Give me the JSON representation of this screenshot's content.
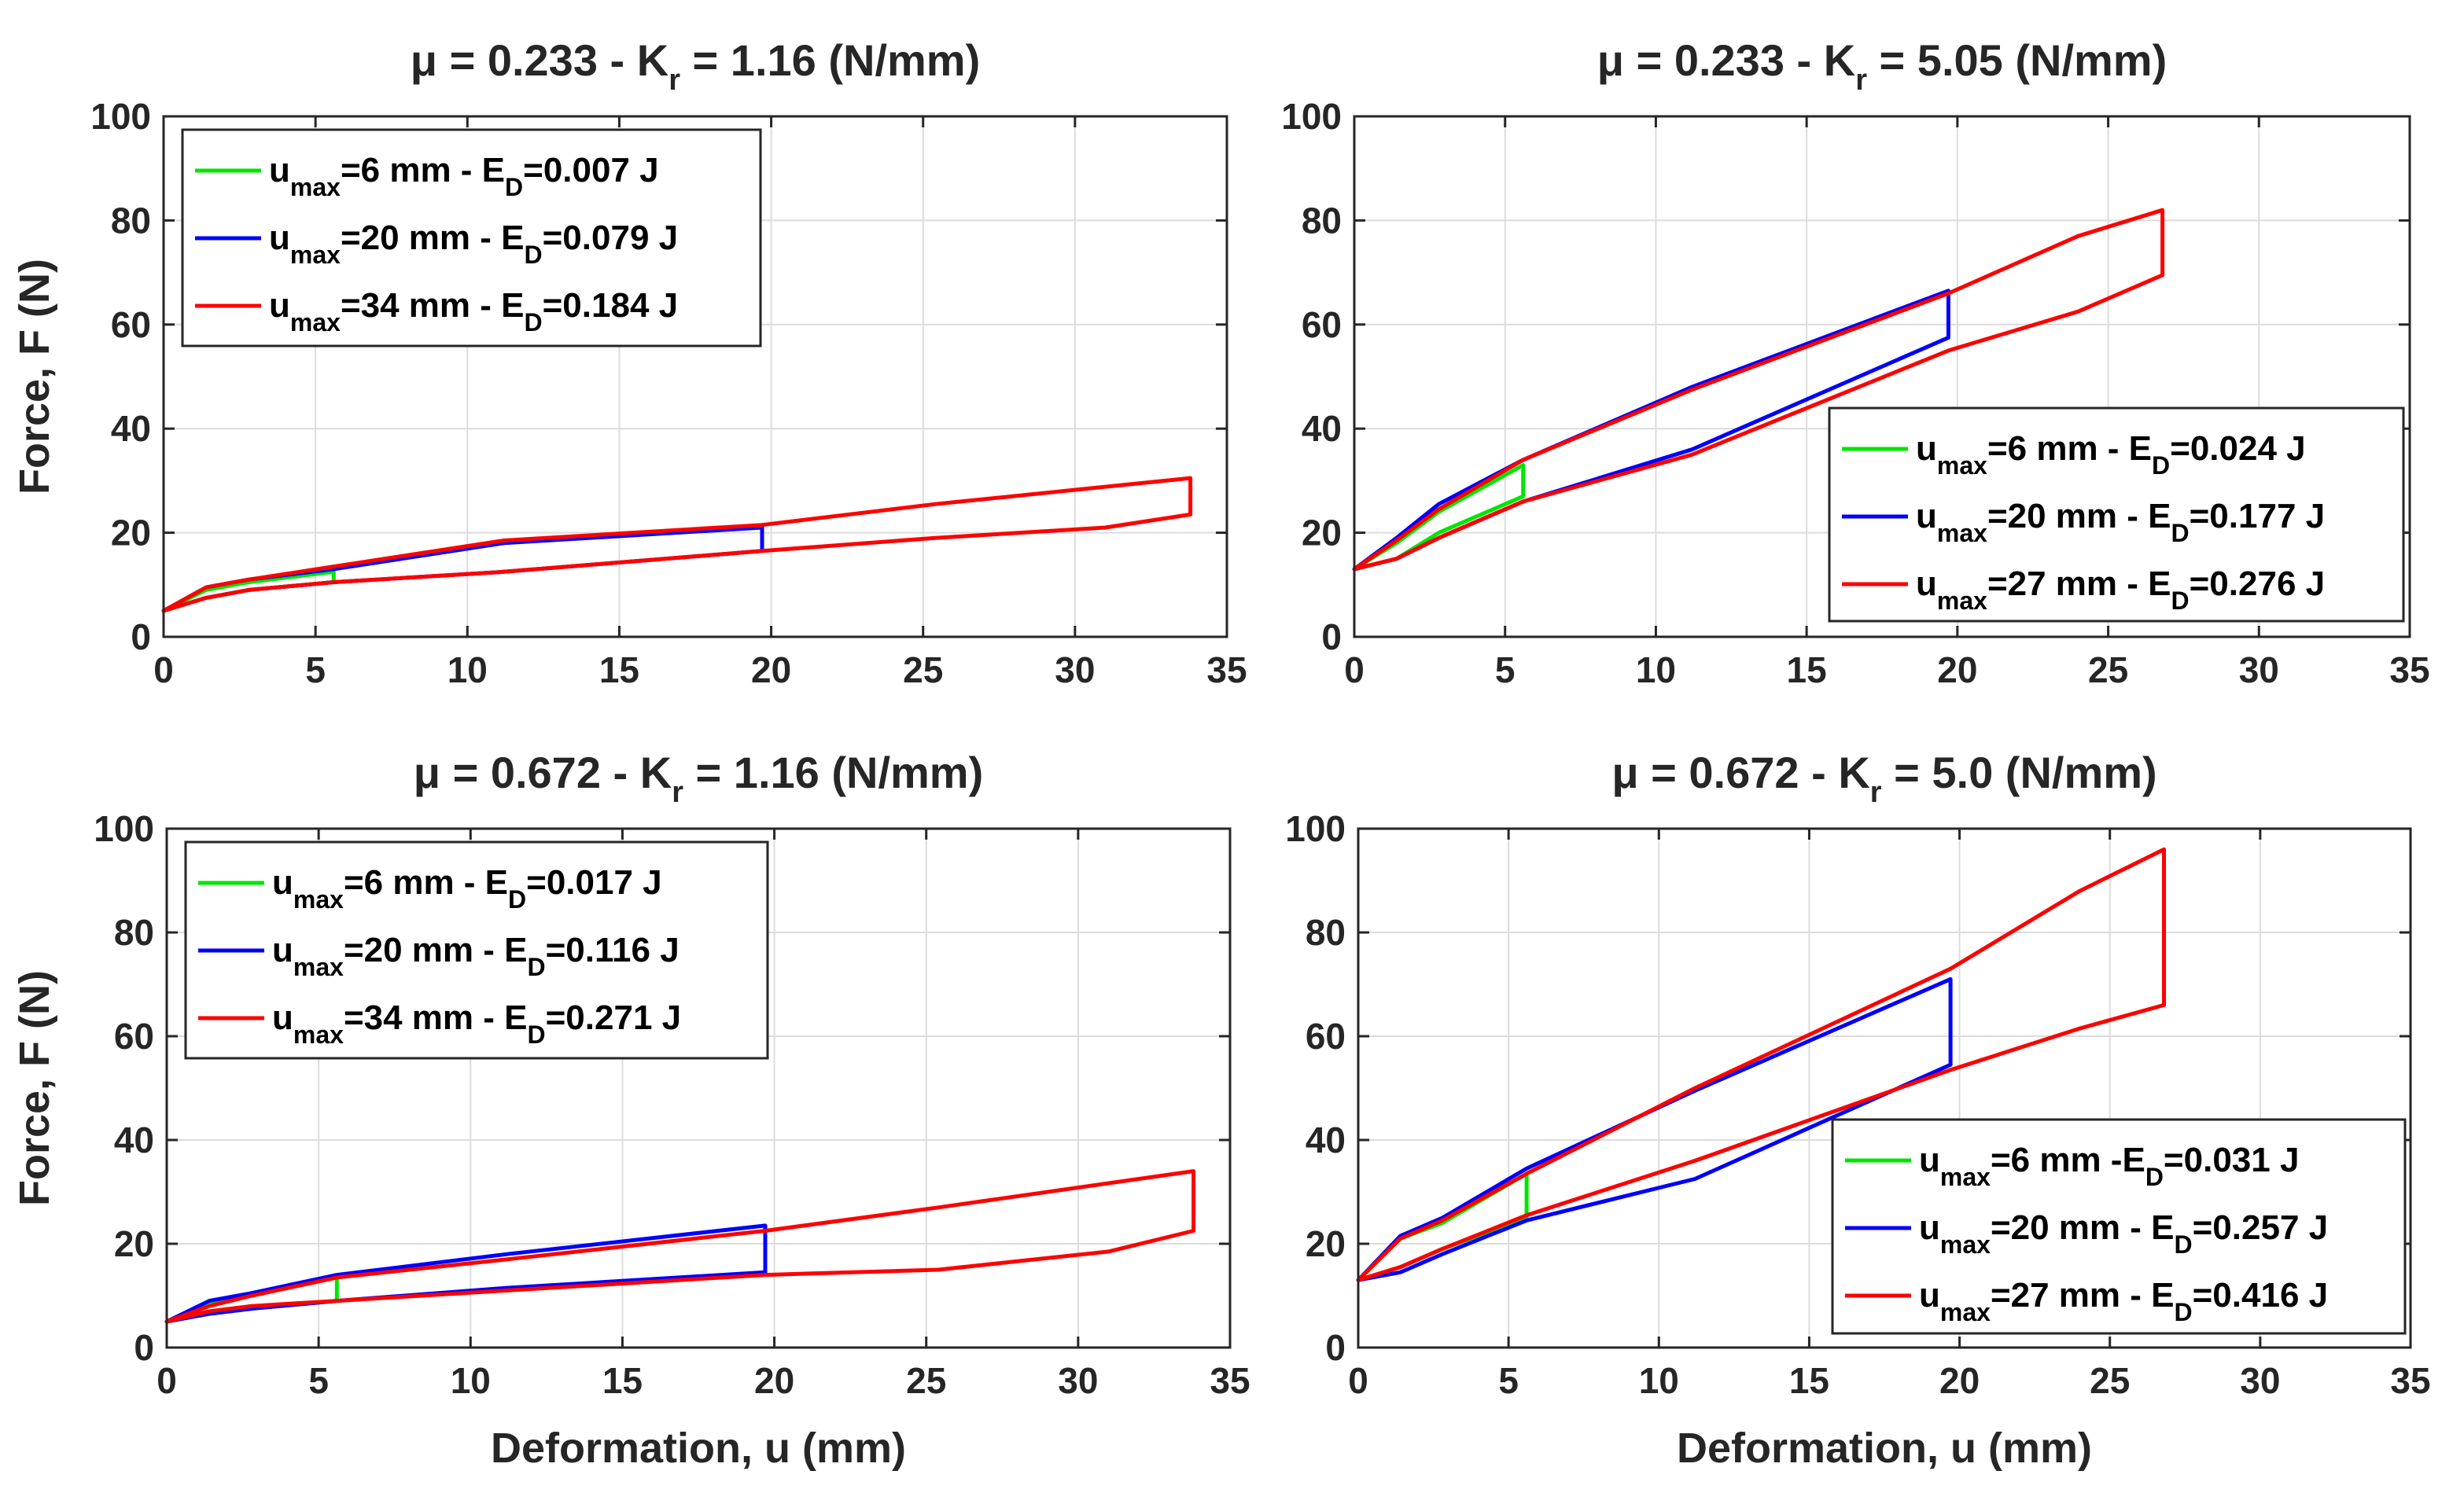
{
  "figure": {
    "xlabel": "Deformation, u (mm)",
    "ylabel": "Force, F (N)"
  },
  "chart_data": [
    {
      "type": "line",
      "title": {
        "prefix": "μ = 0.233 - K",
        "sub": "r",
        "suffix": " = 1.16 (N/mm)"
      },
      "xlabel": "",
      "ylabel": "Force, F (N)",
      "xlim": [
        0,
        35
      ],
      "ylim": [
        0,
        100
      ],
      "xticks": [
        0,
        5,
        10,
        15,
        20,
        25,
        30,
        35
      ],
      "yticks": [
        0,
        20,
        40,
        60,
        80,
        100
      ],
      "grid": true,
      "legend_position": "top-left",
      "series": [
        {
          "name": "u_max=6 mm - E_D=0.007 J",
          "color": "#00e600",
          "legend": {
            "a": "u",
            "a_sub": "max",
            "b": "=6 mm - E",
            "b_sub": "D",
            "c": "=0.007 J"
          },
          "x": [
            0,
            1.4,
            2.8,
            5.6,
            5.6,
            2.8,
            1.4,
            0
          ],
          "y": [
            5,
            9,
            10.5,
            12.5,
            10.5,
            9,
            7.5,
            5
          ]
        },
        {
          "name": "u_max=20 mm - E_D=0.079 J",
          "color": "#0000ff",
          "legend": {
            "a": "u",
            "a_sub": "max",
            "b": "=20 mm - E",
            "b_sub": "D",
            "c": "=0.079 J"
          },
          "x": [
            0,
            1.4,
            2.8,
            5.6,
            11.2,
            19.7,
            19.7,
            11.2,
            5.6,
            2.8,
            1.4,
            0
          ],
          "y": [
            5,
            9.5,
            11,
            13,
            18,
            21,
            16.5,
            12.5,
            10.5,
            9,
            7.5,
            5
          ]
        },
        {
          "name": "u_max=34 mm - E_D=0.184 J",
          "color": "#ff0000",
          "legend": {
            "a": "u",
            "a_sub": "max",
            "b": "=34 mm - E",
            "b_sub": "D",
            "c": "=0.184 J"
          },
          "x": [
            0,
            1.4,
            2.8,
            5.6,
            11.2,
            19.7,
            25.4,
            33.8,
            33.8,
            31,
            25.4,
            19.7,
            11.2,
            5.6,
            2.8,
            1.4,
            0
          ],
          "y": [
            5,
            9.5,
            11,
            13.5,
            18.5,
            21.5,
            25.5,
            30.5,
            23.5,
            21,
            19,
            16.5,
            12.5,
            10.5,
            9,
            7.5,
            5
          ]
        }
      ]
    },
    {
      "type": "line",
      "title": {
        "prefix": "μ = 0.233 - K",
        "sub": "r",
        "suffix": " = 5.05 (N/mm)"
      },
      "xlabel": "",
      "ylabel": "",
      "xlim": [
        0,
        35
      ],
      "ylim": [
        0,
        100
      ],
      "xticks": [
        0,
        5,
        10,
        15,
        20,
        25,
        30,
        35
      ],
      "yticks": [
        0,
        20,
        40,
        60,
        80,
        100
      ],
      "grid": true,
      "legend_position": "bottom-right",
      "series": [
        {
          "name": "u_max=6 mm - E_D=0.024 J",
          "color": "#00e600",
          "legend": {
            "a": "u",
            "a_sub": "max",
            "b": "=6 mm - E",
            "b_sub": "D",
            "c": "=0.024 J"
          },
          "x": [
            0,
            1.4,
            2.8,
            5.6,
            5.6,
            2.8,
            1.4,
            0
          ],
          "y": [
            13,
            18,
            24,
            33,
            27,
            20,
            15,
            13
          ]
        },
        {
          "name": "u_max=20 mm - E_D=0.177 J",
          "color": "#0000ff",
          "legend": {
            "a": "u",
            "a_sub": "max",
            "b": "=20 mm - E",
            "b_sub": "D",
            "c": "=0.177 J"
          },
          "x": [
            0,
            1.4,
            2.8,
            5.6,
            11.2,
            19.7,
            19.7,
            11.2,
            5.6,
            2.8,
            1.4,
            0
          ],
          "y": [
            13,
            19,
            25.5,
            34,
            48,
            66.5,
            57.5,
            36,
            26,
            19,
            15,
            13
          ]
        },
        {
          "name": "u_max=27 mm - E_D=0.276 J",
          "color": "#ff0000",
          "legend": {
            "a": "u",
            "a_sub": "max",
            "b": "=27 mm - E",
            "b_sub": "D",
            "c": "=0.276 J"
          },
          "x": [
            0,
            1.4,
            2.8,
            5.6,
            11.2,
            19.7,
            24,
            26.8,
            26.8,
            24,
            19.7,
            11.2,
            5.6,
            2.8,
            1.4,
            0
          ],
          "y": [
            13,
            18.5,
            24.5,
            34,
            47.5,
            66,
            77,
            82,
            69.5,
            62.5,
            55,
            35,
            26,
            19,
            15,
            13
          ]
        }
      ]
    },
    {
      "type": "line",
      "title": {
        "prefix": "μ = 0.672 - K",
        "sub": "r",
        "suffix": " = 1.16 (N/mm)"
      },
      "xlabel": "Deformation, u (mm)",
      "ylabel": "Force, F (N)",
      "xlim": [
        0,
        35
      ],
      "ylim": [
        0,
        100
      ],
      "xticks": [
        0,
        5,
        10,
        15,
        20,
        25,
        30,
        35
      ],
      "yticks": [
        0,
        20,
        40,
        60,
        80,
        100
      ],
      "grid": true,
      "legend_position": "top-left",
      "series": [
        {
          "name": "u_max=6 mm - E_D=0.017 J",
          "color": "#00e600",
          "legend": {
            "a": "u",
            "a_sub": "max",
            "b": "=6 mm - E",
            "b_sub": "D",
            "c": "=0.017 J"
          },
          "x": [
            0,
            1.4,
            2.8,
            5.6,
            5.6,
            2.8,
            1.4,
            0
          ],
          "y": [
            5,
            8.5,
            10.5,
            13.5,
            9,
            7.5,
            6.5,
            5
          ]
        },
        {
          "name": "u_max=20 mm - E_D=0.116 J",
          "color": "#0000ff",
          "legend": {
            "a": "u",
            "a_sub": "max",
            "b": "=20 mm - E",
            "b_sub": "D",
            "c": "=0.116 J"
          },
          "x": [
            0,
            1.4,
            2.8,
            5.6,
            11.2,
            19.7,
            19.7,
            11.2,
            5.6,
            2.8,
            1.4,
            0
          ],
          "y": [
            5,
            9,
            10.5,
            14,
            18,
            23.5,
            14.5,
            11.5,
            9,
            7.5,
            6.5,
            5
          ]
        },
        {
          "name": "u_max=34 mm - E_D=0.271 J",
          "color": "#ff0000",
          "legend": {
            "a": "u",
            "a_sub": "max",
            "b": "=34 mm - E",
            "b_sub": "D",
            "c": "=0.271 J"
          },
          "x": [
            0,
            1.4,
            2.8,
            5.6,
            11.2,
            19.7,
            25.4,
            33.8,
            33.8,
            31,
            25.4,
            19.7,
            11.2,
            5.6,
            2.8,
            1.4,
            0
          ],
          "y": [
            5,
            8,
            10,
            13.5,
            17,
            22.5,
            27,
            34,
            22.5,
            18.5,
            15,
            14,
            11,
            9,
            8,
            7,
            5
          ]
        }
      ]
    },
    {
      "type": "line",
      "title": {
        "prefix": "μ = 0.672 - K",
        "sub": "r",
        "suffix": " = 5.0 (N/mm)"
      },
      "xlabel": "Deformation, u (mm)",
      "ylabel": "",
      "xlim": [
        0,
        35
      ],
      "ylim": [
        0,
        100
      ],
      "xticks": [
        0,
        5,
        10,
        15,
        20,
        25,
        30,
        35
      ],
      "yticks": [
        0,
        20,
        40,
        60,
        80,
        100
      ],
      "grid": true,
      "legend_position": "bottom-right",
      "series": [
        {
          "name": "u_max=6 mm -E_D=0.031 J",
          "color": "#00e600",
          "legend": {
            "a": "u",
            "a_sub": "max",
            "b": "=6 mm -E",
            "b_sub": "D",
            "c": "=0.031 J"
          },
          "x": [
            0,
            1.4,
            2.8,
            5.6,
            5.6,
            2.8,
            1.4,
            0
          ],
          "y": [
            13,
            21,
            24,
            33.5,
            25,
            19,
            15.5,
            13
          ]
        },
        {
          "name": "u_max=20 mm - E_D=0.257 J",
          "color": "#0000ff",
          "legend": {
            "a": "u",
            "a_sub": "max",
            "b": "=20 mm - E",
            "b_sub": "D",
            "c": "=0.257 J"
          },
          "x": [
            0,
            1.4,
            2.8,
            5.6,
            11.2,
            19.7,
            19.7,
            11.2,
            5.6,
            2.8,
            1.4,
            0
          ],
          "y": [
            13,
            21.5,
            25,
            34.5,
            49.5,
            71,
            54.5,
            32.5,
            24.5,
            18,
            14.5,
            13
          ]
        },
        {
          "name": "u_max=27 mm - E_D=0.416 J",
          "color": "#ff0000",
          "legend": {
            "a": "u",
            "a_sub": "max",
            "b": "=27 mm - E",
            "b_sub": "D",
            "c": "=0.416 J"
          },
          "x": [
            0,
            1.4,
            2.8,
            5.6,
            11.2,
            19.7,
            24,
            26.8,
            26.8,
            24,
            19.7,
            11.2,
            5.6,
            2.8,
            1.4,
            0
          ],
          "y": [
            13,
            21,
            24.5,
            33.5,
            50,
            73,
            88,
            96,
            66,
            61.5,
            53.5,
            36,
            25.5,
            19,
            15.5,
            13
          ]
        }
      ]
    }
  ]
}
